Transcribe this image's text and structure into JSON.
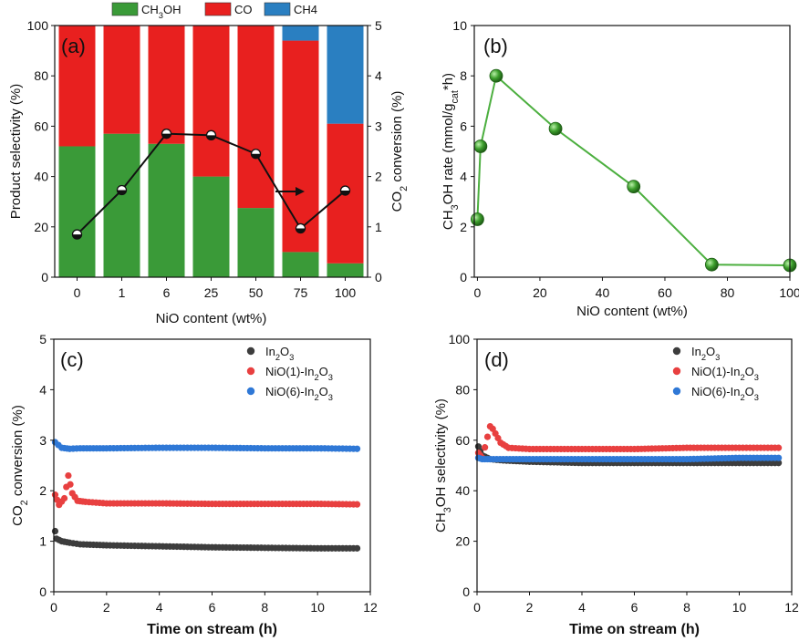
{
  "colors": {
    "ch3oh": "#3a9a38",
    "co": "#e8201f",
    "ch4": "#2a7fc1",
    "line_green": "#4caf3f",
    "s_in2o3": "#3d3d3d",
    "s_nio1": "#e84040",
    "s_nio6": "#2f78d6"
  },
  "chart_data": [
    {
      "id": "a",
      "type": "bar",
      "panel_label": "(a)",
      "legend": [
        {
          "key": "ch3oh",
          "base": "CH",
          "sub": "3",
          "rest": "OH"
        },
        {
          "key": "co",
          "base": "CO",
          "sub": "",
          "rest": ""
        },
        {
          "key": "ch4",
          "base": "CH4",
          "sub": "",
          "rest": ""
        }
      ],
      "categories": [
        "0",
        "1",
        "6",
        "25",
        "50",
        "75",
        "100"
      ],
      "series": [
        {
          "name": "CH3OH",
          "key": "ch3oh",
          "values": [
            52,
            57,
            53,
            40,
            27.5,
            10,
            5.5
          ]
        },
        {
          "name": "CO",
          "key": "co",
          "values": [
            48,
            43,
            47,
            60,
            72.5,
            84,
            55.5
          ]
        },
        {
          "name": "CH4",
          "key": "ch4",
          "values": [
            0,
            0,
            0,
            0,
            0,
            6,
            39
          ]
        }
      ],
      "conversion": {
        "name": "CO2 conversion",
        "values": [
          0.85,
          1.73,
          2.85,
          2.82,
          2.45,
          0.97,
          1.72
        ]
      },
      "xlabel": "NiO content (wt%)",
      "ylabel": "Product selectivity (%)",
      "ylim": [
        0,
        100
      ],
      "yticks": [
        0,
        20,
        40,
        60,
        80,
        100
      ],
      "y2label": {
        "base": "CO",
        "sub": "2",
        "rest": " conversion (%)"
      },
      "y2lim": [
        0,
        5
      ],
      "y2ticks": [
        0,
        1,
        2,
        3,
        4,
        5
      ]
    },
    {
      "id": "b",
      "type": "line",
      "panel_label": "(b)",
      "x": [
        0,
        1,
        6,
        25,
        50,
        75,
        100
      ],
      "y": [
        2.3,
        5.2,
        8.0,
        5.9,
        3.6,
        0.5,
        0.47
      ],
      "xlabel": "NiO content (wt%)",
      "ylabel": {
        "p1": "CH",
        "s1": "3",
        "p2": "OH rate (mmol/g",
        "s2": "cat",
        "p3": "*h)"
      },
      "xlim": [
        -1,
        100
      ],
      "xticks": [
        0,
        20,
        40,
        60,
        80,
        100
      ],
      "ylim": [
        0,
        10
      ],
      "yticks": [
        0,
        2,
        4,
        6,
        8,
        10
      ]
    },
    {
      "id": "c",
      "type": "scatter",
      "panel_label": "(c)",
      "xlabel": "Time on stream (h)",
      "ylabel": {
        "base": "CO",
        "sub": "2",
        "rest": " conversion (%)"
      },
      "xlim": [
        0,
        12
      ],
      "xticks": [
        0,
        2,
        4,
        6,
        8,
        10,
        12
      ],
      "ylim": [
        0,
        5
      ],
      "yticks": [
        0,
        1,
        2,
        3,
        4,
        5
      ],
      "series": [
        {
          "key": "s_in2o3",
          "label": {
            "base": "In",
            "sub": "2",
            "rest": "O",
            "sub2": "3"
          },
          "x": [
            0.05,
            0.1,
            0.3,
            0.6,
            1,
            2,
            4,
            6,
            8,
            10,
            11.5
          ],
          "y": [
            1.2,
            1.05,
            1.0,
            0.97,
            0.94,
            0.92,
            0.9,
            0.88,
            0.87,
            0.86,
            0.86
          ]
        },
        {
          "key": "s_nio1",
          "label": {
            "base": "NiO(1)-In",
            "sub": "2",
            "rest": "O",
            "sub2": "3"
          },
          "x": [
            0.05,
            0.2,
            0.4,
            0.55,
            0.7,
            0.9,
            1.2,
            2,
            4,
            6,
            8,
            10,
            11.5
          ],
          "y": [
            1.92,
            1.72,
            1.85,
            2.3,
            1.95,
            1.8,
            1.78,
            1.75,
            1.75,
            1.74,
            1.74,
            1.74,
            1.73
          ]
        },
        {
          "key": "s_nio6",
          "label": {
            "base": "NiO(6)-In",
            "sub": "2",
            "rest": "O",
            "sub2": "3"
          },
          "x": [
            0.05,
            0.3,
            0.6,
            1,
            2,
            4,
            6,
            8,
            10,
            11.5
          ],
          "y": [
            2.96,
            2.85,
            2.83,
            2.84,
            2.84,
            2.85,
            2.85,
            2.84,
            2.84,
            2.83
          ]
        }
      ]
    },
    {
      "id": "d",
      "type": "scatter",
      "panel_label": "(d)",
      "xlabel": "Time on stream (h)",
      "ylabel": {
        "base": "CH",
        "sub": "3",
        "rest": "OH selectivity (%)"
      },
      "xlim": [
        0,
        12
      ],
      "xticks": [
        0,
        2,
        4,
        6,
        8,
        10,
        12
      ],
      "ylim": [
        0,
        100
      ],
      "yticks": [
        0,
        20,
        40,
        60,
        80,
        100
      ],
      "series": [
        {
          "key": "s_in2o3",
          "label": {
            "base": "In",
            "sub": "2",
            "rest": "O",
            "sub2": "3"
          },
          "x": [
            0.05,
            0.2,
            0.5,
            1,
            2,
            4,
            6,
            8,
            10,
            11.5
          ],
          "y": [
            57.5,
            54,
            52.5,
            52,
            51.5,
            51,
            51,
            51,
            51,
            51
          ]
        },
        {
          "key": "s_nio1",
          "label": {
            "base": "NiO(1)-In",
            "sub": "2",
            "rest": "O",
            "sub2": "3"
          },
          "x": [
            0.05,
            0.2,
            0.5,
            0.6,
            0.9,
            1.2,
            2,
            4,
            6,
            8,
            10,
            11.5
          ],
          "y": [
            55,
            53,
            65.5,
            64.5,
            59,
            57,
            56.5,
            56.5,
            56.5,
            57,
            57,
            57
          ]
        },
        {
          "key": "s_nio6",
          "label": {
            "base": "NiO(6)-In",
            "sub": "2",
            "rest": "O",
            "sub2": "3"
          },
          "x": [
            0.05,
            0.2,
            0.5,
            1,
            2,
            4,
            6,
            8,
            10,
            11.5
          ],
          "y": [
            53,
            52.5,
            52.5,
            52.5,
            52.5,
            52.5,
            52.5,
            52.5,
            53,
            53
          ]
        }
      ]
    }
  ]
}
